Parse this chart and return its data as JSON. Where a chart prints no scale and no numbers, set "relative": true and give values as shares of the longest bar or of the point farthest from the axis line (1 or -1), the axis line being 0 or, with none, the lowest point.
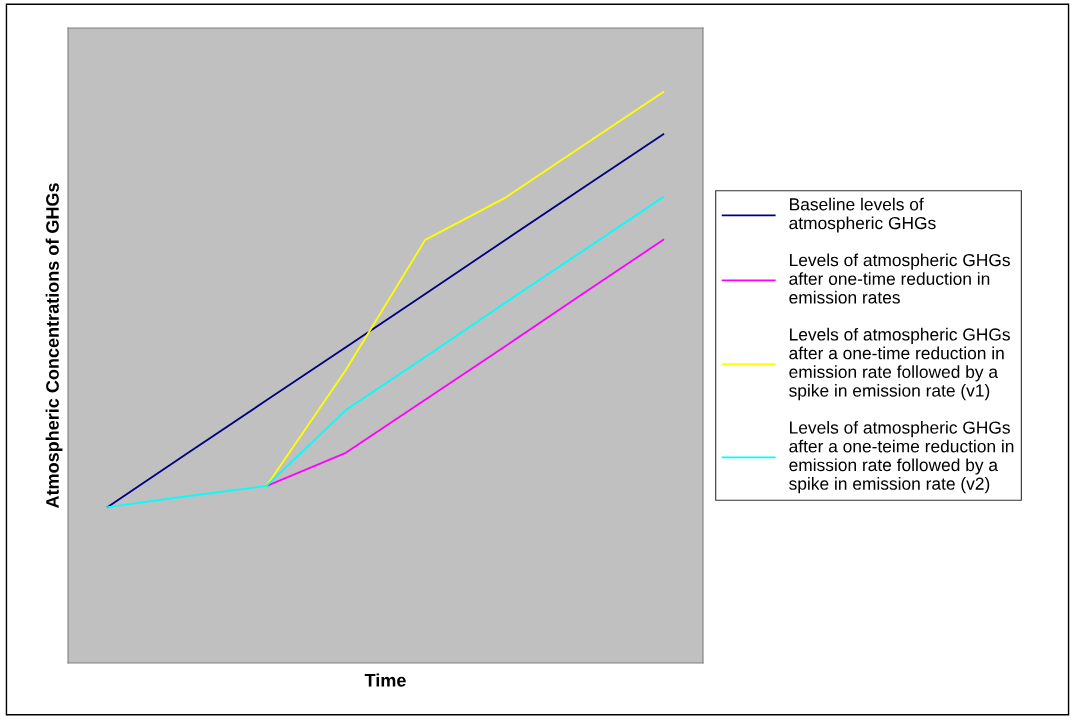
{
  "chart_data": {
    "type": "line",
    "relative": true,
    "xlabel": "Time",
    "ylabel": "Atmospheric Concentrations of GHGs",
    "categories": [
      null,
      null,
      null,
      null,
      null,
      null,
      null,
      null
    ],
    "series": [
      {
        "name": "Baseline levels of\natmospheric GHGs",
        "color": "#000080",
        "values": [
          0.273,
          0.367,
          0.46,
          0.553,
          0.646,
          0.74,
          0.833,
          0.926
        ]
      },
      {
        "name": "Levels of atmospheric GHGs\nafter one-time reduction in\nemission rates",
        "color": "#ff00ff",
        "values": [
          null,
          null,
          0.31,
          0.368,
          0.461,
          0.554,
          0.648,
          0.741
        ]
      },
      {
        "name": "Levels of atmospheric GHGs\nafter a one-time reduction in\nemission rate followed by a\nspike in emission rate (v1)",
        "color": "#ffff00",
        "values": [
          null,
          null,
          0.31,
          0.513,
          0.741,
          0.814,
          0.907,
          1.0
        ]
      },
      {
        "name": "Levels of atmospheric GHGs\nafter a one-teime reduction in\nemission rate followed by a\nspike in emission rate (v2)",
        "color": "#00ffff",
        "values": [
          0.273,
          0.292,
          0.31,
          0.443,
          0.536,
          0.63,
          0.723,
          0.816
        ]
      }
    ],
    "legend": "right",
    "grid": false,
    "marker": "none",
    "line_style": "solid"
  }
}
